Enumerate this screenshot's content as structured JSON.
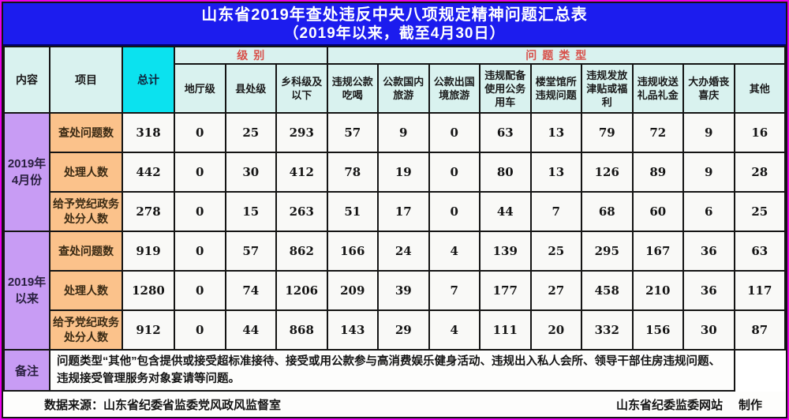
{
  "title": {
    "line1": "山东省2019年查处违反中央八项规定精神问题汇总表",
    "line2": "（2019年以来，截至4月30日）"
  },
  "table": {
    "corner": {
      "content": "内容",
      "item": "项目",
      "total": "总计"
    },
    "groups": [
      {
        "label": "级别",
        "span": 3
      },
      {
        "label": "问题类型",
        "span": 9
      }
    ],
    "columns": [
      "地厅级",
      "县处级",
      "乡科级及以下",
      "违规公款吃喝",
      "公款国内旅游",
      "公款出国境旅游",
      "违规配备使用公务用车",
      "楼堂馆所违规问题",
      "违规发放津贴或福利",
      "违规收送礼品礼金",
      "大办婚丧喜庆",
      "其他"
    ],
    "row_groups": [
      {
        "label": "2019年\n4月份",
        "rows": [
          {
            "item": "查处问题数",
            "total": "318",
            "values": [
              "0",
              "25",
              "293",
              "57",
              "9",
              "0",
              "63",
              "13",
              "79",
              "72",
              "9",
              "16"
            ]
          },
          {
            "item": "处理人数",
            "total": "442",
            "values": [
              "0",
              "30",
              "412",
              "78",
              "19",
              "0",
              "80",
              "13",
              "126",
              "89",
              "9",
              "28"
            ]
          },
          {
            "item": "给予党纪政务处分人数",
            "total": "278",
            "values": [
              "0",
              "15",
              "263",
              "51",
              "17",
              "0",
              "44",
              "7",
              "68",
              "60",
              "6",
              "25"
            ]
          }
        ]
      },
      {
        "label": "2019年\n以来",
        "rows": [
          {
            "item": "查处问题数",
            "total": "919",
            "values": [
              "0",
              "57",
              "862",
              "166",
              "24",
              "4",
              "139",
              "25",
              "295",
              "167",
              "36",
              "63"
            ]
          },
          {
            "item": "处理人数",
            "total": "1280",
            "values": [
              "0",
              "74",
              "1206",
              "209",
              "39",
              "7",
              "177",
              "27",
              "458",
              "210",
              "36",
              "117"
            ]
          },
          {
            "item": "给予党纪政务处分人数",
            "total": "912",
            "values": [
              "0",
              "44",
              "868",
              "143",
              "29",
              "4",
              "111",
              "20",
              "332",
              "156",
              "30",
              "87"
            ]
          }
        ]
      }
    ],
    "remark": {
      "label": "备注",
      "text": "问题类型“其他”包含提供或接受超标准接待、接受或用公款参与高消费娱乐健身活动、违规出入私人会所、领导干部住房违规问题、违规接受管理服务对象宴请等问题。"
    }
  },
  "footer": {
    "source": "数据来源：山东省纪委省监委党风政风监督室",
    "credit_site": "山东省纪委监委网站",
    "credit_made": "制作"
  },
  "colors": {
    "frame_magenta": "#ea00ea",
    "title_blue": "#1c1cee",
    "header_pale_cyan": "#d9f2ef",
    "total_cyan": "#0be2ef",
    "group_label_red": "#d8504a",
    "row_group_purple": "#c89cf4",
    "item_orange": "#fbc28b",
    "cell_white": "#f9f9f7",
    "border_black": "#141414"
  }
}
